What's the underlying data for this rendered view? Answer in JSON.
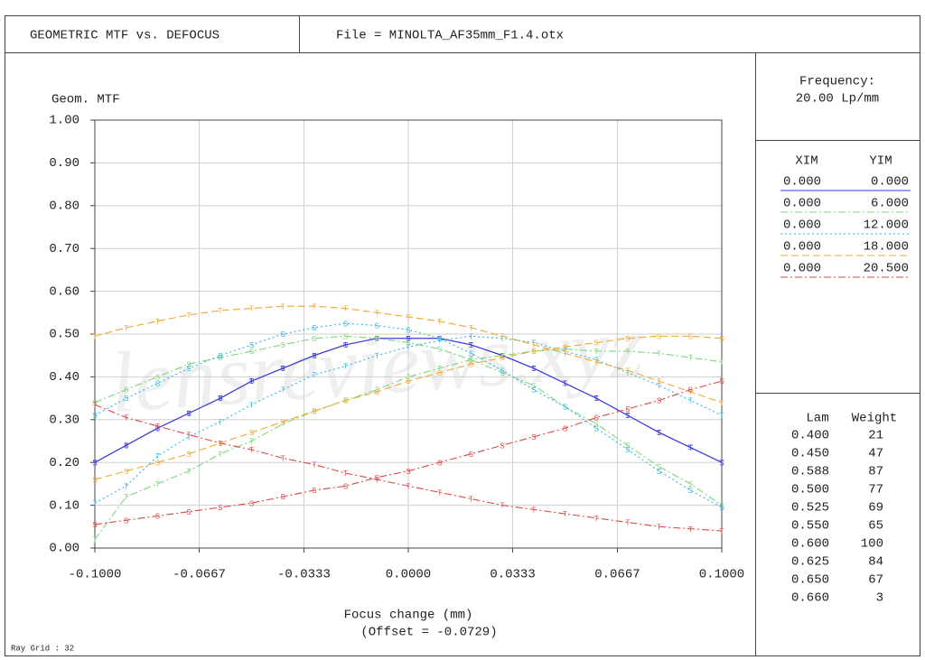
{
  "header": {
    "title": "GEOMETRIC MTF vs. DEFOCUS",
    "file": "File = MINOLTA_AF35mm_F1.4.otx"
  },
  "chart_data": {
    "type": "line",
    "y_label": "Geom. MTF",
    "x_label": "Focus change (mm)",
    "x_sublabel": "(Offset = -0.0729)",
    "watermark": "lensreviews.xyz",
    "grid": true,
    "xlim": [
      -0.1,
      0.1
    ],
    "ylim": [
      0,
      1
    ],
    "xticks": [
      {
        "value": -0.1,
        "label": "-0.1000"
      },
      {
        "value": -0.0667,
        "label": "-0.0667"
      },
      {
        "value": -0.0333,
        "label": "-0.0333"
      },
      {
        "value": 0,
        "label": "0.0000"
      },
      {
        "value": 0.0333,
        "label": "0.0333"
      },
      {
        "value": 0.0667,
        "label": "0.0667"
      },
      {
        "value": 0.1,
        "label": "0.1000"
      }
    ],
    "yticks": [
      {
        "value": 0,
        "label": "0.00"
      },
      {
        "value": 0.1,
        "label": "0.10"
      },
      {
        "value": 0.2,
        "label": "0.20"
      },
      {
        "value": 0.3,
        "label": "0.30"
      },
      {
        "value": 0.4,
        "label": "0.40"
      },
      {
        "value": 0.5,
        "label": "0.50"
      },
      {
        "value": 0.6,
        "label": "0.60"
      },
      {
        "value": 0.7,
        "label": "0.70"
      },
      {
        "value": 0.8,
        "label": "0.80"
      },
      {
        "value": 0.9,
        "label": "0.90"
      },
      {
        "value": 1,
        "label": "1.00"
      }
    ],
    "x": [
      -0.1,
      -0.09,
      -0.08,
      -0.07,
      -0.06,
      -0.05,
      -0.04,
      -0.03,
      -0.02,
      -0.01,
      0,
      0.01,
      0.02,
      0.03,
      0.04,
      0.05,
      0.06,
      0.07,
      0.08,
      0.09,
      0.1
    ],
    "series": [
      {
        "marker": "T",
        "color": "#3b3bdc",
        "dash": "solid",
        "values": [
          0.2,
          0.24,
          0.28,
          0.315,
          0.35,
          0.39,
          0.42,
          0.45,
          0.475,
          0.49,
          0.49,
          0.49,
          0.475,
          0.45,
          0.42,
          0.385,
          0.35,
          0.31,
          0.27,
          0.235,
          0.2
        ]
      },
      {
        "marker": "S",
        "color": "#3b3bdc",
        "dash": "solid",
        "values": [
          0.2,
          0.24,
          0.28,
          0.315,
          0.35,
          0.39,
          0.42,
          0.45,
          0.475,
          0.49,
          0.49,
          0.49,
          0.475,
          0.45,
          0.42,
          0.385,
          0.35,
          0.31,
          0.27,
          0.235,
          0.2
        ]
      },
      {
        "marker": "T",
        "color": "#7dd67d",
        "dash": "dashdot",
        "values": [
          0.02,
          0.12,
          0.15,
          0.18,
          0.22,
          0.25,
          0.29,
          0.32,
          0.345,
          0.37,
          0.4,
          0.42,
          0.44,
          0.45,
          0.46,
          0.465,
          0.46,
          0.46,
          0.455,
          0.445,
          0.435
        ]
      },
      {
        "marker": "S",
        "color": "#7dd67d",
        "dash": "dashdot",
        "values": [
          0.34,
          0.37,
          0.4,
          0.43,
          0.445,
          0.46,
          0.475,
          0.49,
          0.495,
          0.49,
          0.48,
          0.465,
          0.44,
          0.41,
          0.38,
          0.33,
          0.29,
          0.24,
          0.19,
          0.15,
          0.1
        ]
      },
      {
        "marker": "T",
        "color": "#33b5e5",
        "dash": "dotted",
        "values": [
          0.105,
          0.145,
          0.215,
          0.26,
          0.295,
          0.335,
          0.37,
          0.405,
          0.425,
          0.45,
          0.47,
          0.485,
          0.495,
          0.49,
          0.48,
          0.46,
          0.44,
          0.41,
          0.38,
          0.345,
          0.31
        ]
      },
      {
        "marker": "S",
        "color": "#33b5e5",
        "dash": "dotted",
        "values": [
          0.31,
          0.35,
          0.385,
          0.42,
          0.45,
          0.475,
          0.5,
          0.515,
          0.525,
          0.52,
          0.51,
          0.49,
          0.455,
          0.415,
          0.37,
          0.33,
          0.28,
          0.23,
          0.18,
          0.135,
          0.095
        ]
      },
      {
        "marker": "T",
        "color": "#f0a830",
        "dash": "dashed",
        "values": [
          0.495,
          0.515,
          0.53,
          0.545,
          0.555,
          0.56,
          0.565,
          0.565,
          0.56,
          0.55,
          0.54,
          0.53,
          0.515,
          0.495,
          0.475,
          0.455,
          0.435,
          0.415,
          0.39,
          0.365,
          0.34
        ]
      },
      {
        "marker": "S",
        "color": "#f0a830",
        "dash": "dashed",
        "values": [
          0.16,
          0.18,
          0.2,
          0.22,
          0.245,
          0.27,
          0.295,
          0.32,
          0.345,
          0.365,
          0.39,
          0.41,
          0.43,
          0.445,
          0.46,
          0.47,
          0.48,
          0.49,
          0.495,
          0.495,
          0.49
        ]
      },
      {
        "marker": "T",
        "color": "#e04848",
        "dash": "dashdot",
        "values": [
          0.335,
          0.305,
          0.285,
          0.265,
          0.245,
          0.23,
          0.21,
          0.195,
          0.175,
          0.16,
          0.145,
          0.13,
          0.115,
          0.1,
          0.09,
          0.08,
          0.07,
          0.06,
          0.05,
          0.045,
          0.04
        ]
      },
      {
        "marker": "S",
        "color": "#e04848",
        "dash": "dashdot",
        "values": [
          0.055,
          0.065,
          0.075,
          0.085,
          0.095,
          0.105,
          0.12,
          0.135,
          0.145,
          0.165,
          0.18,
          0.2,
          0.22,
          0.24,
          0.26,
          0.28,
          0.305,
          0.325,
          0.345,
          0.37,
          0.39
        ]
      }
    ]
  },
  "panel": {
    "frequency_label": "Frequency:",
    "frequency": "20.00  Lp/mm",
    "fields": {
      "headers": [
        "XIM",
        "YIM"
      ],
      "rows": [
        [
          "0.000",
          "0.000"
        ],
        [
          "0.000",
          "6.000"
        ],
        [
          "0.000",
          "12.000"
        ],
        [
          "0.000",
          "18.000"
        ],
        [
          "0.000",
          "20.500"
        ]
      ]
    },
    "wavelengths": {
      "headers": [
        "Lam",
        "Weight"
      ],
      "rows": [
        [
          "0.400",
          "21"
        ],
        [
          "0.450",
          "47"
        ],
        [
          "0.588",
          "87"
        ],
        [
          "0.500",
          "77"
        ],
        [
          "0.525",
          "69"
        ],
        [
          "0.550",
          "65"
        ],
        [
          "0.600",
          "100"
        ],
        [
          "0.625",
          "84"
        ],
        [
          "0.650",
          "67"
        ],
        [
          "0.660",
          "3"
        ]
      ]
    }
  },
  "footer": "Ray Grid : 32"
}
